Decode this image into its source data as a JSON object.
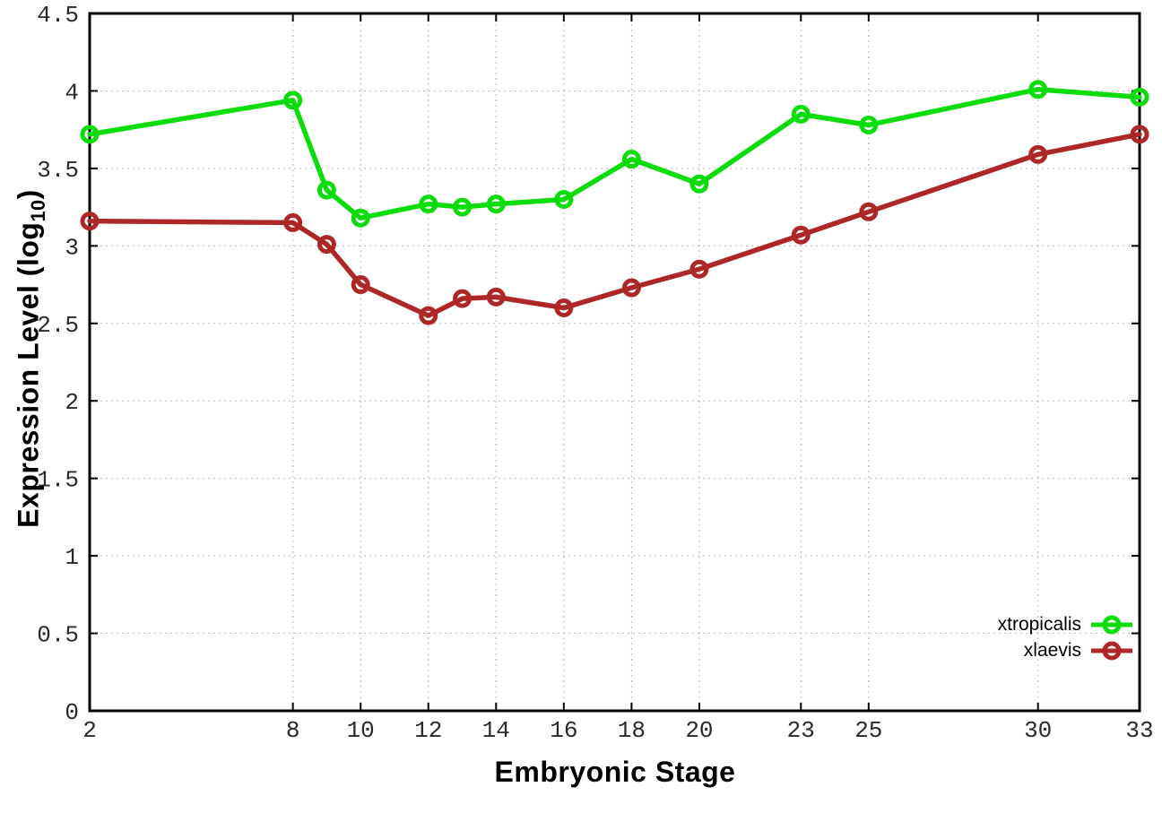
{
  "chart_data": {
    "type": "line",
    "title": "",
    "xlabel": "Embryonic Stage",
    "ylabel": "Expression Level (log10)",
    "ylabel_prefix": "Expression Level (log",
    "ylabel_sub": "10",
    "ylabel_suffix": ")",
    "xlim": [
      2,
      33
    ],
    "ylim": [
      0,
      4.5
    ],
    "grid": true,
    "legend_position": "inside-bottom-right",
    "x_ticks": [
      {
        "v": 2,
        "label": "2"
      },
      {
        "v": 8,
        "label": "8"
      },
      {
        "v": 10,
        "label": "10"
      },
      {
        "v": 12,
        "label": "12"
      },
      {
        "v": 14,
        "label": "14"
      },
      {
        "v": 16,
        "label": "16"
      },
      {
        "v": 18,
        "label": "18"
      },
      {
        "v": 20,
        "label": "20"
      },
      {
        "v": 23,
        "label": "23"
      },
      {
        "v": 25,
        "label": "25"
      },
      {
        "v": 30,
        "label": "30"
      },
      {
        "v": 33,
        "label": "33"
      }
    ],
    "y_ticks": [
      {
        "v": 0,
        "label": "0"
      },
      {
        "v": 0.5,
        "label": "0.5"
      },
      {
        "v": 1,
        "label": "1"
      },
      {
        "v": 1.5,
        "label": "1.5"
      },
      {
        "v": 2,
        "label": "2"
      },
      {
        "v": 2.5,
        "label": "2.5"
      },
      {
        "v": 3,
        "label": "3"
      },
      {
        "v": 3.5,
        "label": "3.5"
      },
      {
        "v": 4,
        "label": "4"
      },
      {
        "v": 4.5,
        "label": "4.5"
      }
    ],
    "x": [
      2,
      8,
      9,
      10,
      12,
      13,
      14,
      16,
      18,
      20,
      23,
      25,
      30,
      33
    ],
    "series": [
      {
        "name": "xtropicalis",
        "color": "#0cdc0c",
        "values": [
          3.72,
          3.94,
          3.36,
          3.18,
          3.27,
          3.25,
          3.27,
          3.3,
          3.56,
          3.4,
          3.85,
          3.78,
          4.01,
          3.96
        ]
      },
      {
        "name": "xlaevis",
        "color": "#ad2727",
        "values": [
          3.16,
          3.15,
          3.01,
          2.75,
          2.55,
          2.66,
          2.67,
          2.6,
          2.73,
          2.85,
          3.07,
          3.22,
          3.59,
          3.72
        ]
      }
    ]
  },
  "colors": {
    "background": "#ffffff",
    "grid": "#b8b8b8",
    "axis": "#000000",
    "tick_text": "#2a2a2a"
  }
}
